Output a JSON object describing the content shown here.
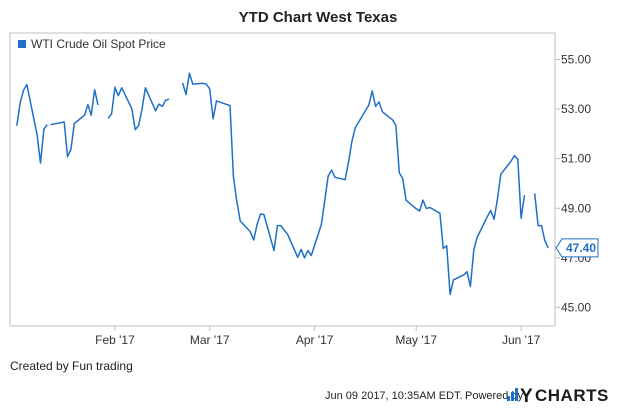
{
  "chart_data": {
    "type": "line",
    "title": "YTD Chart West Texas",
    "series": [
      {
        "name": "WTI Crude Oil Spot Price",
        "color": "#1f6fc5",
        "segments": [
          [
            [
              "2017-01-03",
              52.33
            ],
            [
              "2017-01-04",
              53.26
            ],
            [
              "2017-01-05",
              53.76
            ],
            [
              "2017-01-06",
              53.99
            ],
            [
              "2017-01-09",
              51.96
            ],
            [
              "2017-01-10",
              50.82
            ],
            [
              "2017-01-11",
              52.19
            ],
            [
              "2017-01-12",
              52.37
            ]
          ],
          [
            [
              "2017-01-13",
              52.37
            ],
            [
              "2017-01-17",
              52.48
            ],
            [
              "2017-01-18",
              51.08
            ],
            [
              "2017-01-19",
              51.37
            ],
            [
              "2017-01-20",
              52.42
            ],
            [
              "2017-01-23",
              52.75
            ],
            [
              "2017-01-24",
              53.18
            ],
            [
              "2017-01-25",
              52.75
            ],
            [
              "2017-01-26",
              53.78
            ],
            [
              "2017-01-27",
              53.17
            ]
          ],
          [
            [
              "2017-01-30",
              52.63
            ],
            [
              "2017-01-31",
              52.81
            ],
            [
              "2017-02-01",
              53.88
            ],
            [
              "2017-02-02",
              53.54
            ],
            [
              "2017-02-03",
              53.86
            ],
            [
              "2017-02-06",
              53.01
            ],
            [
              "2017-02-07",
              52.17
            ],
            [
              "2017-02-08",
              52.34
            ],
            [
              "2017-02-09",
              52.99
            ],
            [
              "2017-02-10",
              53.86
            ],
            [
              "2017-02-13",
              52.93
            ],
            [
              "2017-02-14",
              53.2
            ],
            [
              "2017-02-15",
              53.11
            ],
            [
              "2017-02-16",
              53.36
            ],
            [
              "2017-02-17",
              53.4
            ]
          ],
          [
            [
              "2017-02-21",
              54.06
            ],
            [
              "2017-02-22",
              53.59
            ],
            [
              "2017-02-23",
              54.45
            ],
            [
              "2017-02-24",
              54.01
            ],
            [
              "2017-02-27",
              54.04
            ],
            [
              "2017-02-28",
              54.01
            ],
            [
              "2017-03-01",
              53.82
            ],
            [
              "2017-03-02",
              52.61
            ],
            [
              "2017-03-03",
              53.33
            ],
            [
              "2017-03-06",
              53.19
            ],
            [
              "2017-03-07",
              53.14
            ],
            [
              "2017-03-08",
              50.28
            ],
            [
              "2017-03-09",
              49.28
            ],
            [
              "2017-03-10",
              48.49
            ],
            [
              "2017-03-13",
              48.05
            ],
            [
              "2017-03-14",
              47.72
            ],
            [
              "2017-03-15",
              48.35
            ],
            [
              "2017-03-16",
              48.77
            ],
            [
              "2017-03-17",
              48.75
            ],
            [
              "2017-03-20",
              47.29
            ],
            [
              "2017-03-21",
              48.3
            ],
            [
              "2017-03-22",
              48.3
            ],
            [
              "2017-03-23",
              48.12
            ],
            [
              "2017-03-24",
              47.95
            ],
            [
              "2017-03-27",
              47.02
            ],
            [
              "2017-03-28",
              47.34
            ],
            [
              "2017-03-29",
              47.0
            ],
            [
              "2017-03-30",
              47.3
            ],
            [
              "2017-03-31",
              47.1
            ],
            [
              "2017-04-03",
              48.35
            ],
            [
              "2017-04-04",
              49.33
            ],
            [
              "2017-04-05",
              50.3
            ],
            [
              "2017-04-06",
              50.54
            ],
            [
              "2017-04-07",
              50.25
            ],
            [
              "2017-04-10",
              50.15
            ],
            [
              "2017-04-11",
              50.85
            ],
            [
              "2017-04-12",
              51.7
            ],
            [
              "2017-04-13",
              52.25
            ],
            [
              "2017-04-17",
              53.16
            ],
            [
              "2017-04-18",
              53.73
            ],
            [
              "2017-04-19",
              53.11
            ],
            [
              "2017-04-20",
              53.29
            ],
            [
              "2017-04-21",
              52.89
            ],
            [
              "2017-04-24",
              52.57
            ],
            [
              "2017-04-25",
              52.34
            ],
            [
              "2017-04-26",
              50.43
            ],
            [
              "2017-04-27",
              50.2
            ],
            [
              "2017-04-28",
              49.32
            ],
            [
              "2017-05-01",
              48.98
            ],
            [
              "2017-05-02",
              48.89
            ],
            [
              "2017-05-03",
              49.33
            ],
            [
              "2017-05-04",
              48.99
            ],
            [
              "2017-05-05",
              49.03
            ],
            [
              "2017-05-08",
              48.8
            ],
            [
              "2017-05-09",
              47.38
            ],
            [
              "2017-05-10",
              47.49
            ],
            [
              "2017-05-11",
              45.52
            ],
            [
              "2017-05-12",
              46.11
            ],
            [
              "2017-05-15",
              46.31
            ],
            [
              "2017-05-16",
              46.44
            ],
            [
              "2017-05-17",
              45.84
            ],
            [
              "2017-05-18",
              47.33
            ],
            [
              "2017-05-19",
              47.82
            ],
            [
              "2017-05-22",
              48.66
            ],
            [
              "2017-05-23",
              48.91
            ],
            [
              "2017-05-24",
              48.56
            ],
            [
              "2017-05-25",
              49.38
            ],
            [
              "2017-05-26",
              50.37
            ],
            [
              "2017-05-29",
              50.9
            ],
            [
              "2017-05-30",
              51.12
            ],
            [
              "2017-05-31",
              50.98
            ],
            [
              "2017-06-01",
              48.6
            ],
            [
              "2017-06-02",
              49.53
            ]
          ],
          [
            [
              "2017-06-05",
              49.6
            ],
            [
              "2017-06-06",
              48.3
            ],
            [
              "2017-06-07",
              48.3
            ],
            [
              "2017-06-08",
              47.7
            ],
            [
              "2017-06-09",
              47.4
            ]
          ]
        ]
      }
    ],
    "y_ticks": [
      "55.00",
      "53.00",
      "51.00",
      "49.00",
      "47.00",
      "45.00"
    ],
    "y_tick_values": [
      55,
      53,
      51,
      49,
      47,
      45
    ],
    "x_ticks": [
      {
        "label": "Feb '17",
        "date": "2017-02-01"
      },
      {
        "label": "Mar '17",
        "date": "2017-03-01"
      },
      {
        "label": "Apr '17",
        "date": "2017-04-01"
      },
      {
        "label": "May '17",
        "date": "2017-05-01"
      },
      {
        "label": "Jun '17",
        "date": "2017-06-01"
      }
    ],
    "xlim": [
      "2017-01-01",
      "2017-06-11"
    ],
    "ylim": [
      44.25,
      56.07
    ],
    "last_value_label": "47.40",
    "grid": false,
    "legend": "top-left",
    "y_axis_side": "right"
  },
  "credit_text": "Created by Fun trading",
  "footer": {
    "timestamp": "Jun 09 2017, 10:35AM EDT.",
    "powered_by": "Powered by",
    "brand_first": "Y",
    "brand_rest": "CHARTS"
  },
  "colors": {
    "line": "#1f6fc5",
    "frame": "#bfbfbf",
    "brand_accent": "#1f6fc5"
  }
}
